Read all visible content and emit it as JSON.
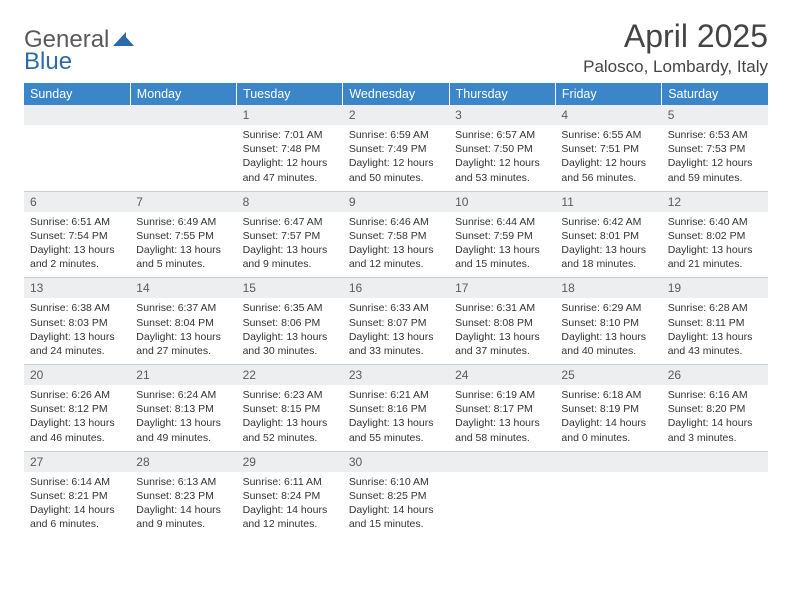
{
  "logo": {
    "text1": "General",
    "text2": "Blue"
  },
  "header": {
    "month_title": "April 2025",
    "location": "Palosco, Lombardy, Italy"
  },
  "colors": {
    "header_bg": "#3a86c8",
    "header_text": "#ffffff",
    "band_bg": "#eceef0",
    "band_border": "#c8cdd2",
    "body_text": "#333333",
    "title_text": "#444444",
    "logo_gray": "#5a5a5a",
    "logo_blue": "#2f6aa8"
  },
  "weekdays": [
    "Sunday",
    "Monday",
    "Tuesday",
    "Wednesday",
    "Thursday",
    "Friday",
    "Saturday"
  ],
  "grid": [
    [
      null,
      null,
      {
        "n": "1",
        "sr": "7:01 AM",
        "ss": "7:48 PM",
        "dl": "12 hours and 47 minutes."
      },
      {
        "n": "2",
        "sr": "6:59 AM",
        "ss": "7:49 PM",
        "dl": "12 hours and 50 minutes."
      },
      {
        "n": "3",
        "sr": "6:57 AM",
        "ss": "7:50 PM",
        "dl": "12 hours and 53 minutes."
      },
      {
        "n": "4",
        "sr": "6:55 AM",
        "ss": "7:51 PM",
        "dl": "12 hours and 56 minutes."
      },
      {
        "n": "5",
        "sr": "6:53 AM",
        "ss": "7:53 PM",
        "dl": "12 hours and 59 minutes."
      }
    ],
    [
      {
        "n": "6",
        "sr": "6:51 AM",
        "ss": "7:54 PM",
        "dl": "13 hours and 2 minutes."
      },
      {
        "n": "7",
        "sr": "6:49 AM",
        "ss": "7:55 PM",
        "dl": "13 hours and 5 minutes."
      },
      {
        "n": "8",
        "sr": "6:47 AM",
        "ss": "7:57 PM",
        "dl": "13 hours and 9 minutes."
      },
      {
        "n": "9",
        "sr": "6:46 AM",
        "ss": "7:58 PM",
        "dl": "13 hours and 12 minutes."
      },
      {
        "n": "10",
        "sr": "6:44 AM",
        "ss": "7:59 PM",
        "dl": "13 hours and 15 minutes."
      },
      {
        "n": "11",
        "sr": "6:42 AM",
        "ss": "8:01 PM",
        "dl": "13 hours and 18 minutes."
      },
      {
        "n": "12",
        "sr": "6:40 AM",
        "ss": "8:02 PM",
        "dl": "13 hours and 21 minutes."
      }
    ],
    [
      {
        "n": "13",
        "sr": "6:38 AM",
        "ss": "8:03 PM",
        "dl": "13 hours and 24 minutes."
      },
      {
        "n": "14",
        "sr": "6:37 AM",
        "ss": "8:04 PM",
        "dl": "13 hours and 27 minutes."
      },
      {
        "n": "15",
        "sr": "6:35 AM",
        "ss": "8:06 PM",
        "dl": "13 hours and 30 minutes."
      },
      {
        "n": "16",
        "sr": "6:33 AM",
        "ss": "8:07 PM",
        "dl": "13 hours and 33 minutes."
      },
      {
        "n": "17",
        "sr": "6:31 AM",
        "ss": "8:08 PM",
        "dl": "13 hours and 37 minutes."
      },
      {
        "n": "18",
        "sr": "6:29 AM",
        "ss": "8:10 PM",
        "dl": "13 hours and 40 minutes."
      },
      {
        "n": "19",
        "sr": "6:28 AM",
        "ss": "8:11 PM",
        "dl": "13 hours and 43 minutes."
      }
    ],
    [
      {
        "n": "20",
        "sr": "6:26 AM",
        "ss": "8:12 PM",
        "dl": "13 hours and 46 minutes."
      },
      {
        "n": "21",
        "sr": "6:24 AM",
        "ss": "8:13 PM",
        "dl": "13 hours and 49 minutes."
      },
      {
        "n": "22",
        "sr": "6:23 AM",
        "ss": "8:15 PM",
        "dl": "13 hours and 52 minutes."
      },
      {
        "n": "23",
        "sr": "6:21 AM",
        "ss": "8:16 PM",
        "dl": "13 hours and 55 minutes."
      },
      {
        "n": "24",
        "sr": "6:19 AM",
        "ss": "8:17 PM",
        "dl": "13 hours and 58 minutes."
      },
      {
        "n": "25",
        "sr": "6:18 AM",
        "ss": "8:19 PM",
        "dl": "14 hours and 0 minutes."
      },
      {
        "n": "26",
        "sr": "6:16 AM",
        "ss": "8:20 PM",
        "dl": "14 hours and 3 minutes."
      }
    ],
    [
      {
        "n": "27",
        "sr": "6:14 AM",
        "ss": "8:21 PM",
        "dl": "14 hours and 6 minutes."
      },
      {
        "n": "28",
        "sr": "6:13 AM",
        "ss": "8:23 PM",
        "dl": "14 hours and 9 minutes."
      },
      {
        "n": "29",
        "sr": "6:11 AM",
        "ss": "8:24 PM",
        "dl": "14 hours and 12 minutes."
      },
      {
        "n": "30",
        "sr": "6:10 AM",
        "ss": "8:25 PM",
        "dl": "14 hours and 15 minutes."
      },
      null,
      null,
      null
    ]
  ],
  "labels": {
    "sunrise": "Sunrise:",
    "sunset": "Sunset:",
    "daylight": "Daylight:"
  }
}
